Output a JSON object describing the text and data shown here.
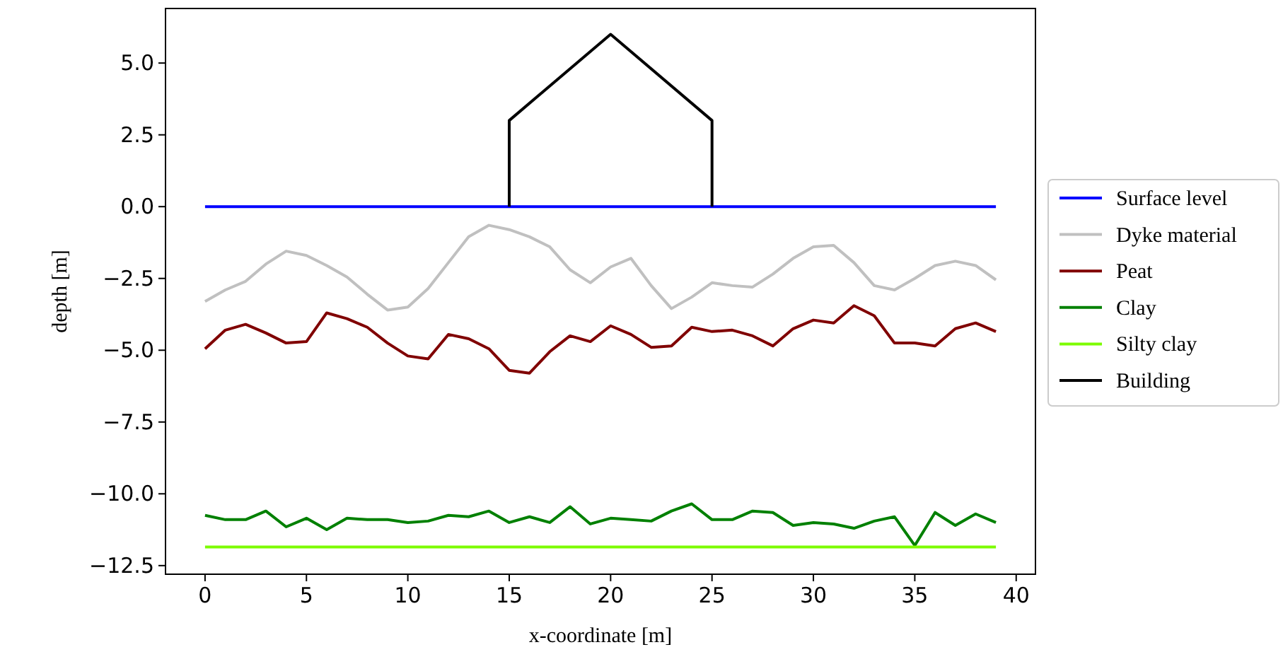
{
  "chart_data": {
    "type": "line",
    "xlabel": "x-coordinate [m]",
    "ylabel": "depth [m]",
    "x": [
      0,
      1,
      2,
      3,
      4,
      5,
      6,
      7,
      8,
      9,
      10,
      11,
      12,
      13,
      14,
      15,
      16,
      17,
      18,
      19,
      20,
      21,
      22,
      23,
      24,
      25,
      26,
      27,
      28,
      29,
      30,
      31,
      32,
      33,
      34,
      35,
      36,
      37,
      38,
      39
    ],
    "xlim": [
      -1.95,
      40.95
    ],
    "xticks": [
      0,
      5,
      10,
      15,
      20,
      25,
      30,
      35,
      40
    ],
    "ylim": [
      -12.8,
      6.9
    ],
    "yticks": [
      {
        "value": 5,
        "label": "5.0"
      },
      {
        "value": 2.5,
        "label": "2.5"
      },
      {
        "value": 0,
        "label": "0.0"
      },
      {
        "value": -2.5,
        "label": "−2.5"
      },
      {
        "value": -5,
        "label": "−5.0"
      },
      {
        "value": -7.5,
        "label": "−7.5"
      },
      {
        "value": -10,
        "label": "−10.0"
      },
      {
        "value": -12.5,
        "label": "−12.5"
      }
    ],
    "legend": "right",
    "grid": false,
    "marker": "none",
    "line_style": "solid",
    "series": [
      {
        "name": "Surface level",
        "color": "#0000ff",
        "x": [
          0,
          39
        ],
        "values": [
          0,
          0
        ]
      },
      {
        "name": "Dyke material",
        "color": "#c0c0c0",
        "values": [
          -3.3,
          -2.9,
          -2.6,
          -2.0,
          -1.55,
          -1.7,
          -2.05,
          -2.45,
          -3.05,
          -3.6,
          -3.5,
          -2.85,
          -1.95,
          -1.05,
          -0.65,
          -0.8,
          -1.05,
          -1.4,
          -2.2,
          -2.65,
          -2.1,
          -1.8,
          -2.75,
          -3.55,
          -3.15,
          -2.65,
          -2.75,
          -2.8,
          -2.35,
          -1.8,
          -1.4,
          -1.35,
          -1.95,
          -2.75,
          -2.9,
          -2.5,
          -2.05,
          -1.9,
          -2.05,
          -2.55
        ]
      },
      {
        "name": "Peat",
        "color": "#800000",
        "values": [
          -4.95,
          -4.3,
          -4.1,
          -4.4,
          -4.75,
          -4.7,
          -3.7,
          -3.9,
          -4.2,
          -4.75,
          -5.2,
          -5.3,
          -4.45,
          -4.6,
          -4.95,
          -5.7,
          -5.8,
          -5.05,
          -4.5,
          -4.7,
          -4.15,
          -4.45,
          -4.9,
          -4.85,
          -4.2,
          -4.35,
          -4.3,
          -4.5,
          -4.85,
          -4.25,
          -3.95,
          -4.05,
          -3.45,
          -3.8,
          -4.75,
          -4.75,
          -4.85,
          -4.25,
          -4.05,
          -4.35
        ]
      },
      {
        "name": "Clay",
        "color": "#008000",
        "values": [
          -10.75,
          -10.9,
          -10.9,
          -10.6,
          -11.15,
          -10.85,
          -11.25,
          -10.85,
          -10.9,
          -10.9,
          -11.0,
          -10.95,
          -10.75,
          -10.8,
          -10.6,
          -11.0,
          -10.8,
          -11.0,
          -10.45,
          -11.05,
          -10.85,
          -10.9,
          -10.95,
          -10.6,
          -10.35,
          -10.9,
          -10.9,
          -10.6,
          -10.65,
          -11.1,
          -11.0,
          -11.05,
          -11.2,
          -10.95,
          -10.8,
          -11.8,
          -10.65,
          -11.1,
          -10.7,
          -11.0
        ]
      },
      {
        "name": "Silty clay",
        "color": "#7cfc00",
        "x": [
          0,
          39
        ],
        "values": [
          -11.85,
          -11.85
        ]
      },
      {
        "name": "Building",
        "color": "#000000",
        "x": [
          15,
          15,
          20,
          25,
          25
        ],
        "values": [
          0,
          3,
          6,
          3,
          0
        ]
      }
    ]
  }
}
